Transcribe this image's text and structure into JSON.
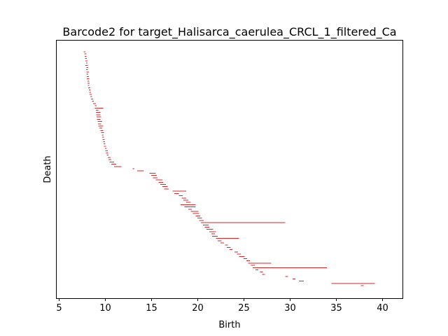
{
  "chart_data": {
    "type": "barcode",
    "title": "Barcode2 for target_Halisarca_caerulea_CRCL_1_filtered_Ca",
    "xlabel": "Birth",
    "ylabel": "Death",
    "xlim": [
      4.7,
      42.2
    ],
    "xticks": [
      5,
      10,
      15,
      20,
      25,
      30,
      35,
      40
    ],
    "color": "#d62728",
    "bars_note_skip": false,
    "bars": [
      [
        7.7,
        7.9
      ],
      [
        7.75,
        8.0
      ],
      [
        7.8,
        8.0
      ],
      [
        7.85,
        8.05
      ],
      [
        7.9,
        8.1
      ],
      [
        7.95,
        8.1
      ],
      [
        7.9,
        8.15
      ],
      [
        8.0,
        8.2
      ],
      [
        7.95,
        8.15
      ],
      [
        8.0,
        8.25
      ],
      [
        8.0,
        8.2
      ],
      [
        8.05,
        8.25
      ],
      [
        8.05,
        8.3
      ],
      [
        8.1,
        8.3
      ],
      [
        8.1,
        8.35
      ],
      [
        8.15,
        8.3
      ],
      [
        8.2,
        8.4
      ],
      [
        8.25,
        8.45
      ],
      [
        8.3,
        8.5
      ],
      [
        8.35,
        8.55
      ],
      [
        8.4,
        8.6
      ],
      [
        8.5,
        8.7
      ],
      [
        8.6,
        8.8
      ],
      [
        8.7,
        9.0
      ],
      [
        8.9,
        9.1
      ],
      [
        8.9,
        9.8
      ],
      [
        9.0,
        9.3
      ],
      [
        9.0,
        9.5
      ],
      [
        9.05,
        9.5
      ],
      [
        9.1,
        9.6
      ],
      [
        9.15,
        9.5
      ],
      [
        9.2,
        9.7
      ],
      [
        9.25,
        9.6
      ],
      [
        9.3,
        9.8
      ],
      [
        9.4,
        9.7
      ],
      [
        9.5,
        9.8
      ],
      [
        9.6,
        9.9
      ],
      [
        9.65,
        9.85
      ],
      [
        9.7,
        9.9
      ],
      [
        9.75,
        9.95
      ],
      [
        9.8,
        10.0
      ],
      [
        9.85,
        10.05
      ],
      [
        9.9,
        10.1
      ],
      [
        10.0,
        10.2
      ],
      [
        10.05,
        10.3
      ],
      [
        10.1,
        10.35
      ],
      [
        10.2,
        10.4
      ],
      [
        10.3,
        10.6
      ],
      [
        10.4,
        10.7
      ],
      [
        10.5,
        11.0
      ],
      [
        10.7,
        11.2
      ],
      [
        11.0,
        11.8
      ],
      [
        13.0,
        13.2
      ],
      [
        13.5,
        14.2
      ],
      [
        14.8,
        15.5
      ],
      [
        15.0,
        15.6
      ],
      [
        15.2,
        15.7
      ],
      [
        15.5,
        16.2
      ],
      [
        15.8,
        16.3
      ],
      [
        16.0,
        16.6
      ],
      [
        16.2,
        16.8
      ],
      [
        16.4,
        16.9
      ],
      [
        17.3,
        18.8
      ],
      [
        17.5,
        18.0
      ],
      [
        18.0,
        18.4
      ],
      [
        18.3,
        18.8
      ],
      [
        18.5,
        19.0
      ],
      [
        18.8,
        19.3
      ],
      [
        18.2,
        19.8
      ],
      [
        18.6,
        19.8
      ],
      [
        19.0,
        19.4
      ],
      [
        19.3,
        20.1
      ],
      [
        19.5,
        20.2
      ],
      [
        19.8,
        20.3
      ],
      [
        20.0,
        20.5
      ],
      [
        20.2,
        20.7
      ],
      [
        20.4,
        29.5
      ],
      [
        20.6,
        21.2
      ],
      [
        20.8,
        21.3
      ],
      [
        21.0,
        21.7
      ],
      [
        21.3,
        22.0
      ],
      [
        21.5,
        21.9
      ],
      [
        21.6,
        22.2
      ],
      [
        22.0,
        24.5
      ],
      [
        22.2,
        22.6
      ],
      [
        22.5,
        22.9
      ],
      [
        23.0,
        23.3
      ],
      [
        23.2,
        23.6
      ],
      [
        23.5,
        23.8
      ],
      [
        24.0,
        24.4
      ],
      [
        24.3,
        24.7
      ],
      [
        24.5,
        25.1
      ],
      [
        25.0,
        25.4
      ],
      [
        25.3,
        25.7
      ],
      [
        25.5,
        28.0
      ],
      [
        25.8,
        26.2
      ],
      [
        26.0,
        34.0
      ],
      [
        26.3,
        26.6
      ],
      [
        26.8,
        27.1
      ],
      [
        27.0,
        27.3
      ],
      [
        29.5,
        29.8
      ],
      [
        30.3,
        30.6
      ],
      [
        31.0,
        31.5
      ],
      [
        34.5,
        39.2
      ],
      [
        37.7,
        38.0
      ]
    ]
  }
}
